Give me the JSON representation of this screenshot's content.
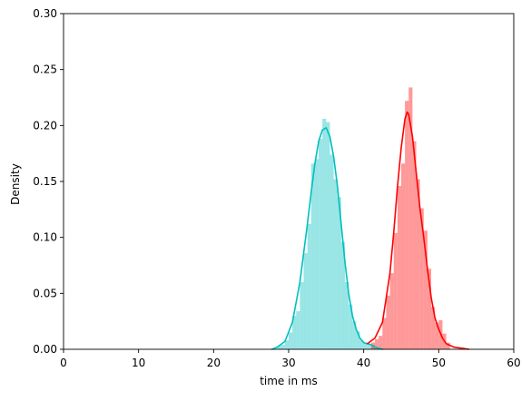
{
  "chart_data": {
    "type": "histogram",
    "xlabel": "time in ms",
    "ylabel": "Density",
    "xlim": [
      0,
      60
    ],
    "ylim": [
      0,
      0.3
    ],
    "x_ticks": [
      "0",
      "10",
      "20",
      "30",
      "40",
      "50",
      "60"
    ],
    "y_ticks": [
      "0.00",
      "0.05",
      "0.10",
      "0.15",
      "0.20",
      "0.25",
      "0.30"
    ],
    "grid": false,
    "legend": "none",
    "bin_width": 0.5,
    "series": [
      {
        "color": "#00bfbf",
        "hist_alpha": 0.4,
        "bins": [
          [
            28.5,
            0.003
          ],
          [
            29.0,
            0.004
          ],
          [
            29.5,
            0.008
          ],
          [
            30.0,
            0.015
          ],
          [
            30.5,
            0.03
          ],
          [
            31.0,
            0.034
          ],
          [
            31.5,
            0.06
          ],
          [
            32.0,
            0.086
          ],
          [
            32.5,
            0.112
          ],
          [
            33.0,
            0.166
          ],
          [
            33.5,
            0.17
          ],
          [
            34.0,
            0.188
          ],
          [
            34.5,
            0.206
          ],
          [
            35.0,
            0.203
          ],
          [
            35.5,
            0.174
          ],
          [
            36.0,
            0.152
          ],
          [
            36.5,
            0.136
          ],
          [
            37.0,
            0.096
          ],
          [
            37.5,
            0.06
          ],
          [
            38.0,
            0.04
          ],
          [
            38.5,
            0.025
          ],
          [
            39.0,
            0.016
          ],
          [
            39.5,
            0.008
          ],
          [
            40.0,
            0.006
          ],
          [
            40.5,
            0.004
          ],
          [
            41.0,
            0.004
          ],
          [
            41.5,
            0.002
          ],
          [
            42.0,
            0.001
          ]
        ],
        "kde": [
          [
            27.8,
            0.0
          ],
          [
            28.5,
            0.002
          ],
          [
            29.5,
            0.007
          ],
          [
            30.5,
            0.024
          ],
          [
            31.5,
            0.06
          ],
          [
            32.5,
            0.112
          ],
          [
            33.0,
            0.14
          ],
          [
            33.5,
            0.166
          ],
          [
            34.0,
            0.186
          ],
          [
            34.5,
            0.196
          ],
          [
            35.0,
            0.198
          ],
          [
            35.5,
            0.19
          ],
          [
            36.0,
            0.172
          ],
          [
            36.5,
            0.146
          ],
          [
            37.0,
            0.112
          ],
          [
            37.5,
            0.078
          ],
          [
            38.0,
            0.05
          ],
          [
            38.5,
            0.03
          ],
          [
            39.0,
            0.018
          ],
          [
            39.5,
            0.01
          ],
          [
            40.0,
            0.006
          ],
          [
            40.5,
            0.005
          ],
          [
            41.0,
            0.004
          ],
          [
            41.5,
            0.002
          ],
          [
            42.5,
            0.0
          ]
        ]
      },
      {
        "color": "#ff0000",
        "hist_alpha": 0.4,
        "bins": [
          [
            41.0,
            0.006
          ],
          [
            41.5,
            0.009
          ],
          [
            42.0,
            0.012
          ],
          [
            42.5,
            0.028
          ],
          [
            43.0,
            0.048
          ],
          [
            43.5,
            0.068
          ],
          [
            44.0,
            0.104
          ],
          [
            44.5,
            0.146
          ],
          [
            45.0,
            0.166
          ],
          [
            45.5,
            0.222
          ],
          [
            46.0,
            0.234
          ],
          [
            46.5,
            0.186
          ],
          [
            47.0,
            0.152
          ],
          [
            47.5,
            0.126
          ],
          [
            48.0,
            0.106
          ],
          [
            48.5,
            0.072
          ],
          [
            49.0,
            0.038
          ],
          [
            49.5,
            0.024
          ],
          [
            50.0,
            0.026
          ],
          [
            50.5,
            0.014
          ],
          [
            51.0,
            0.006
          ]
        ],
        "kde": [
          [
            40.5,
            0.005
          ],
          [
            41.5,
            0.01
          ],
          [
            42.5,
            0.024
          ],
          [
            43.5,
            0.068
          ],
          [
            44.0,
            0.104
          ],
          [
            44.5,
            0.145
          ],
          [
            45.0,
            0.18
          ],
          [
            45.5,
            0.206
          ],
          [
            45.8,
            0.212
          ],
          [
            46.0,
            0.21
          ],
          [
            46.5,
            0.19
          ],
          [
            47.0,
            0.158
          ],
          [
            47.5,
            0.126
          ],
          [
            48.0,
            0.1
          ],
          [
            48.5,
            0.072
          ],
          [
            49.0,
            0.046
          ],
          [
            49.5,
            0.028
          ],
          [
            50.0,
            0.018
          ],
          [
            50.5,
            0.01
          ],
          [
            51.0,
            0.005
          ],
          [
            52.0,
            0.002
          ],
          [
            54.0,
            0.0
          ]
        ]
      }
    ]
  }
}
